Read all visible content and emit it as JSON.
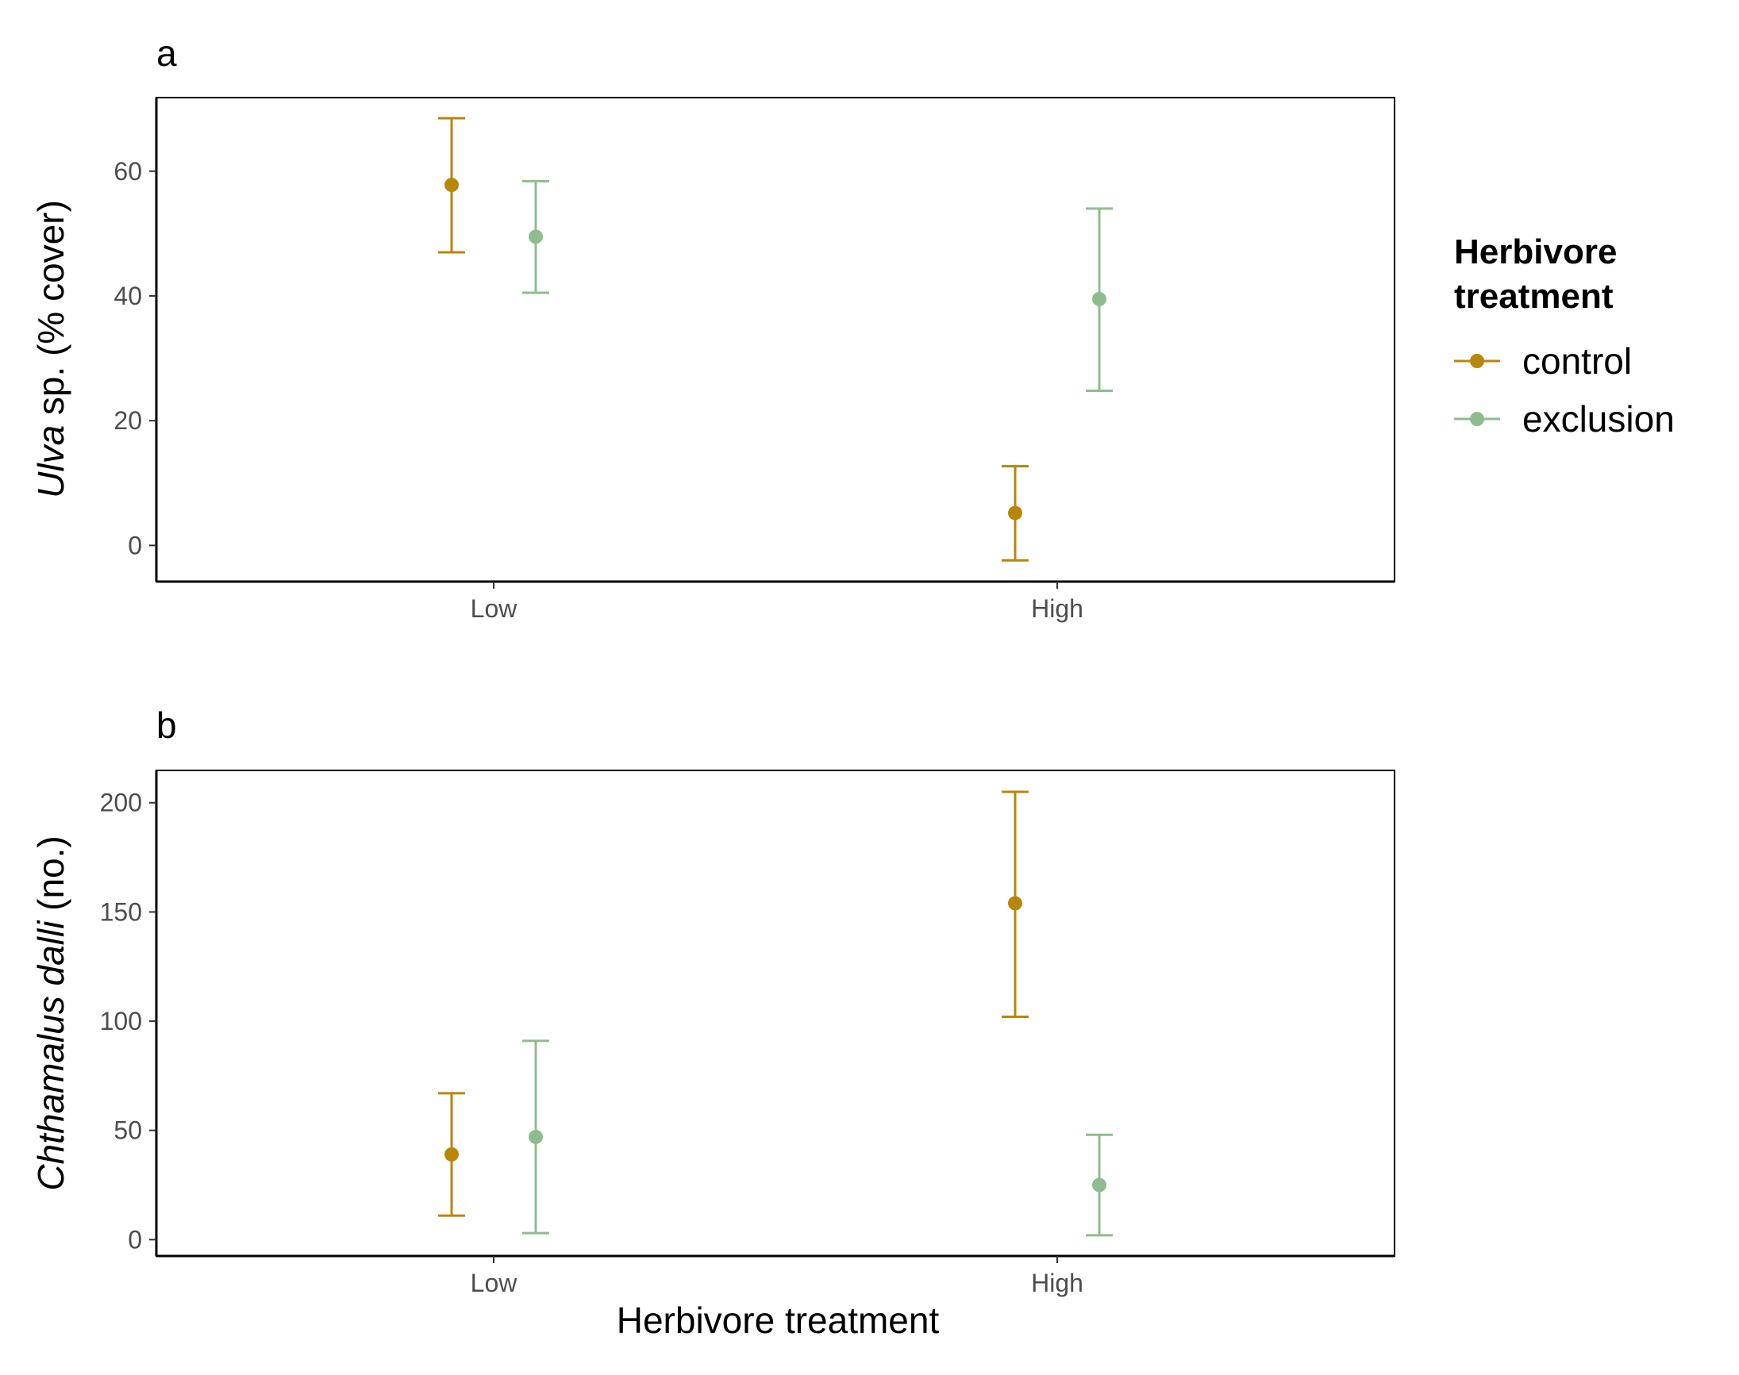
{
  "colors": {
    "control": "#B8860B",
    "exclusion": "#8FBC8F",
    "axis": "#000000",
    "tick_label": "#4d4d4d"
  },
  "legend": {
    "title_line1": "Herbivore",
    "title_line2": "treatment",
    "items": [
      {
        "label": "control",
        "color": "#B8860B"
      },
      {
        "label": "exclusion",
        "color": "#8FBC8F"
      }
    ]
  },
  "x_axis_title": "Herbivore treatment",
  "chart_data": [
    {
      "type": "scatter",
      "panel": "a",
      "ylabel_italic": "Ulva",
      "ylabel_rest": " sp. (% cover)",
      "categories": [
        "Low",
        "High"
      ],
      "yticks": [
        0,
        20,
        40,
        60
      ],
      "ylim": [
        -5.8,
        71.8
      ],
      "series": [
        {
          "name": "control",
          "color": "#B8860B",
          "mean": [
            57.8,
            5.2
          ],
          "lower": [
            47.0,
            -2.4
          ],
          "upper": [
            68.5,
            12.7
          ]
        },
        {
          "name": "exclusion",
          "color": "#8FBC8F",
          "mean": [
            49.5,
            39.5
          ],
          "lower": [
            40.5,
            24.8
          ],
          "upper": [
            58.4,
            54.0
          ]
        }
      ]
    },
    {
      "type": "scatter",
      "panel": "b",
      "ylabel_italic": "Chthamalus dalli",
      "ylabel_rest": " (no.)",
      "categories": [
        "Low",
        "High"
      ],
      "yticks": [
        0,
        50,
        100,
        150,
        200
      ],
      "ylim": [
        -7.5,
        214.8
      ],
      "series": [
        {
          "name": "control",
          "color": "#B8860B",
          "mean": [
            39,
            154
          ],
          "lower": [
            11,
            102
          ],
          "upper": [
            67,
            205
          ]
        },
        {
          "name": "exclusion",
          "color": "#8FBC8F",
          "mean": [
            47,
            25
          ],
          "lower": [
            3,
            2
          ],
          "upper": [
            91,
            48
          ]
        }
      ]
    }
  ]
}
